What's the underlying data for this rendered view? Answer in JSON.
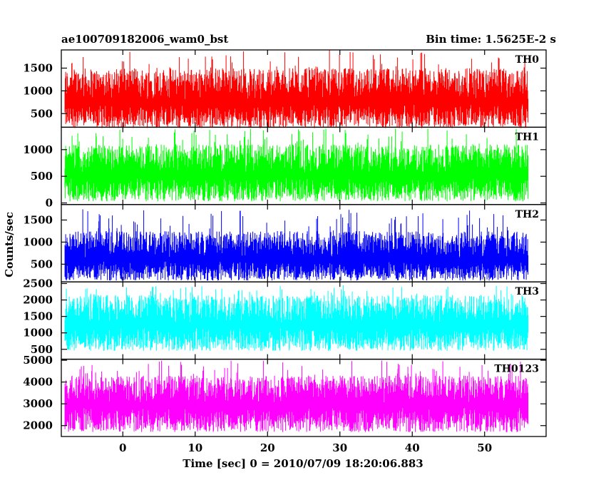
{
  "chart_data": {
    "type": "line",
    "title": "ae100709182006_wam0_bst",
    "subtitle": "Bin time: 1.5625E-2 s",
    "xlabel": "Time [sec] 0 = 2010/07/09 18:20:06.883",
    "ylabel": "Counts/sec",
    "xlim": [
      -8.5,
      58.5
    ],
    "x_data_range": [
      -8,
      56
    ],
    "xticks": [
      0,
      10,
      20,
      30,
      40,
      50
    ],
    "grid": false,
    "panels": [
      {
        "name": "TH0",
        "color": "#ff0000",
        "ylim": [
          200,
          1900
        ],
        "yticks": [
          500,
          1000,
          1500
        ],
        "envelope": {
          "low": 180,
          "mean": 800,
          "high": 1500,
          "spike_max": 1900
        }
      },
      {
        "name": "TH1",
        "color": "#00ff00",
        "ylim": [
          -30,
          1420
        ],
        "yticks": [
          0,
          500,
          1000
        ],
        "envelope": {
          "low": 30,
          "mean": 560,
          "high": 1100,
          "spike_max": 1400
        }
      },
      {
        "name": "TH2",
        "color": "#0000ff",
        "ylim": [
          100,
          1850
        ],
        "yticks": [
          500,
          1000,
          1500
        ],
        "envelope": {
          "low": 130,
          "mean": 650,
          "high": 1250,
          "spike_max": 1750
        }
      },
      {
        "name": "TH3",
        "color": "#00ffff",
        "ylim": [
          200,
          2550
        ],
        "yticks": [
          500,
          1000,
          1500,
          2000,
          2500
        ],
        "envelope": {
          "low": 450,
          "mean": 1300,
          "high": 2150,
          "spike_max": 2450
        }
      },
      {
        "name": "TH0123",
        "color": "#ff00ff",
        "ylim": [
          1500,
          5050
        ],
        "yticks": [
          2000,
          3000,
          4000,
          5000
        ],
        "envelope": {
          "low": 1700,
          "mean": 3050,
          "high": 4300,
          "spike_max": 5000
        }
      }
    ]
  }
}
